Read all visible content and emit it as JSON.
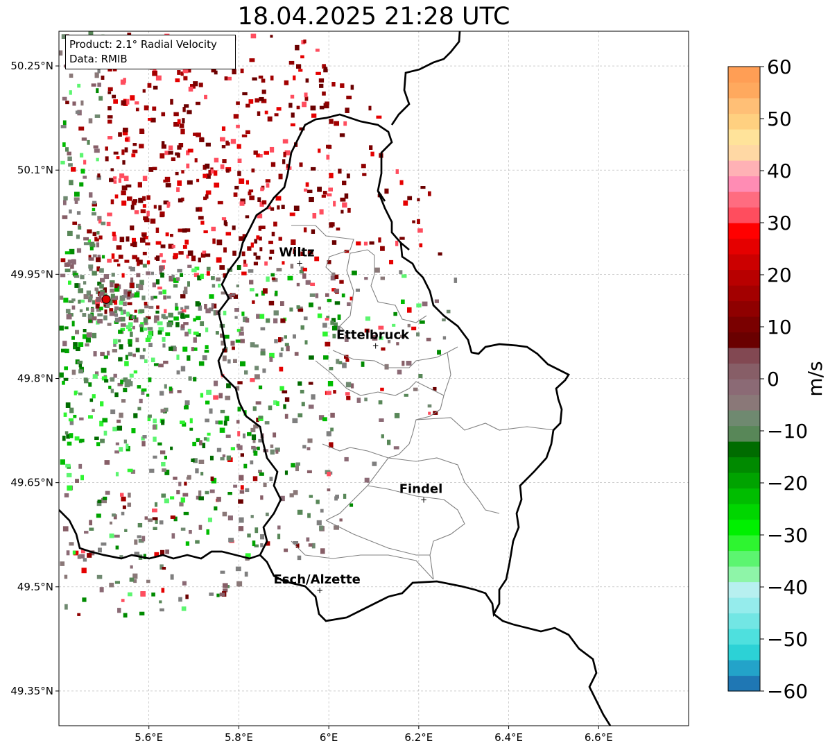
{
  "title": "18.04.2025 21:28 UTC",
  "info_box": {
    "product": "Product: 2.1° Radial Velocity",
    "data_source": "Data: RMIB"
  },
  "map": {
    "extent": {
      "lon": [
        5.4,
        6.8
      ],
      "lat": [
        49.3,
        50.3
      ]
    },
    "lon_ticks": [
      "5.6°E",
      "5.8°E",
      "6°E",
      "6.2°E",
      "6.4°E",
      "6.6°E"
    ],
    "lat_ticks": [
      "49.35°N",
      "49.5°N",
      "49.65°N",
      "49.8°N",
      "49.95°N",
      "50.1°N",
      "50.25°N"
    ],
    "radar_site": {
      "lon": 5.505,
      "lat": 49.914
    },
    "places": [
      {
        "name": "Wiltz",
        "lon": 5.935,
        "lat": 49.966
      },
      {
        "name": "Ettelbruck",
        "lon": 6.104,
        "lat": 49.847
      },
      {
        "name": "Findel",
        "lon": 6.211,
        "lat": 49.625
      },
      {
        "name": "Esch/Alzette",
        "lon": 5.98,
        "lat": 49.495
      }
    ]
  },
  "colorbar": {
    "label": "m/s",
    "min": -60,
    "max": 60,
    "ticks": [
      "60",
      "50",
      "40",
      "30",
      "20",
      "10",
      "0",
      "−10",
      "−20",
      "−30",
      "−40",
      "−50",
      "−60"
    ],
    "colors": [
      "#1f77b4",
      "#23a3c9",
      "#2cd2d6",
      "#4ee0de",
      "#72e6e4",
      "#95ecec",
      "#b7f0f0",
      "#8ef5a8",
      "#5cf570",
      "#2ef530",
      "#00f000",
      "#00d600",
      "#00bd00",
      "#00a300",
      "#008a00",
      "#006c00",
      "#588758",
      "#6f8970",
      "#8a7878",
      "#8b6a75",
      "#875e67",
      "#824852",
      "#6a0000",
      "#7a0000",
      "#8f0000",
      "#a30000",
      "#b80000",
      "#cc0000",
      "#e50000",
      "#ff0000",
      "#ff4d5e",
      "#ff6c80",
      "#ff8cb4",
      "#ffb1b5",
      "#ffd8a4",
      "#ffe39a",
      "#ffd080",
      "#ffbf76",
      "#ffa95e",
      "#ff9e55"
    ]
  }
}
